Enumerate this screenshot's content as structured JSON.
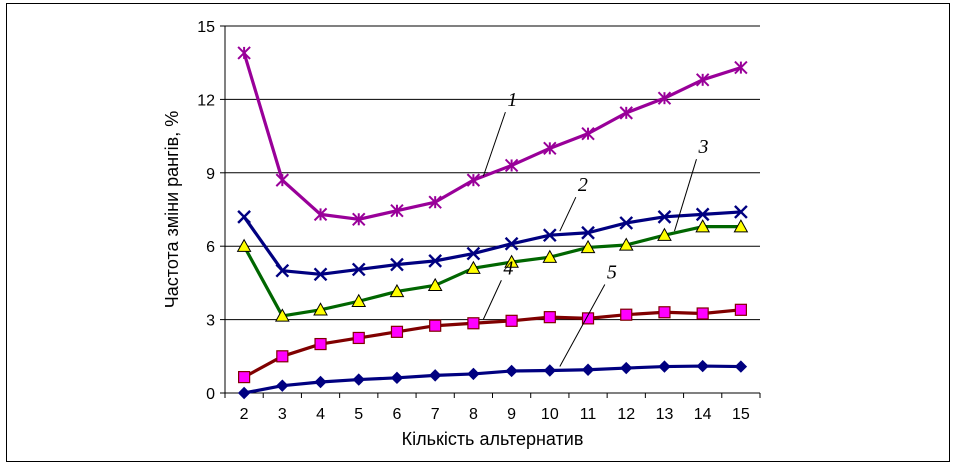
{
  "chart_data": {
    "type": "line",
    "xlabel": "Кількість альтернатив",
    "ylabel": "Частота зміни рангів, %",
    "ylim": [
      0,
      15
    ],
    "yticks": [
      0,
      3,
      6,
      9,
      12,
      15
    ],
    "x": [
      2,
      3,
      4,
      5,
      6,
      7,
      8,
      9,
      10,
      11,
      12,
      13,
      14,
      15
    ],
    "grid": "horizontal",
    "legend": "none",
    "series": [
      {
        "name": "1",
        "color": "#990099",
        "marker": "asterisk",
        "values": [
          13.9,
          8.7,
          7.3,
          7.1,
          7.45,
          7.8,
          8.7,
          9.3,
          10.0,
          10.6,
          11.45,
          12.05,
          12.8,
          13.3
        ]
      },
      {
        "name": "2",
        "color": "#000080",
        "marker": "x",
        "values": [
          7.2,
          5.0,
          4.85,
          5.05,
          5.25,
          5.4,
          5.7,
          6.1,
          6.45,
          6.55,
          6.95,
          7.2,
          7.3,
          7.4
        ]
      },
      {
        "name": "3",
        "color": "#006600",
        "marker": "triangle",
        "marker_fill": "#FFFF00",
        "values": [
          6.0,
          3.15,
          3.4,
          3.75,
          4.15,
          4.4,
          5.1,
          5.35,
          5.55,
          5.95,
          6.05,
          6.45,
          6.8,
          6.8
        ]
      },
      {
        "name": "4",
        "color": "#800000",
        "marker": "square",
        "marker_fill": "#FF00FF",
        "values": [
          0.65,
          1.5,
          2.0,
          2.25,
          2.5,
          2.75,
          2.85,
          2.95,
          3.1,
          3.05,
          3.2,
          3.3,
          3.25,
          3.4
        ]
      },
      {
        "name": "5",
        "color": "#000080",
        "marker": "diamond",
        "values": [
          0.0,
          0.3,
          0.45,
          0.55,
          0.62,
          0.72,
          0.78,
          0.9,
          0.92,
          0.95,
          1.02,
          1.08,
          1.1,
          1.08
        ]
      }
    ],
    "annotations": [
      {
        "text": "1",
        "series": 0,
        "at_x": 8
      },
      {
        "text": "2",
        "series": 1,
        "at_x": 10
      },
      {
        "text": "3",
        "series": 2,
        "at_x": 13
      },
      {
        "text": "4",
        "series": 3,
        "at_x": 8
      },
      {
        "text": "5",
        "series": 4,
        "at_x": 10
      }
    ]
  }
}
